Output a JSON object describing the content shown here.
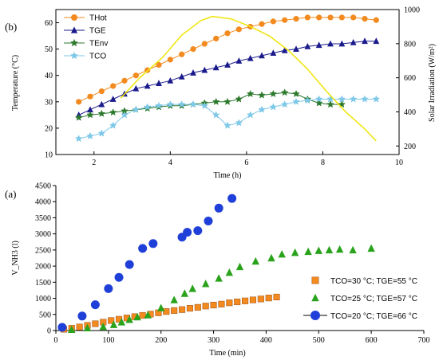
{
  "chart_data": [
    {
      "id": "top",
      "type": "line",
      "panel_label": "(b)",
      "xlabel": "Time (h)",
      "ylabel": "Temperature (°C)",
      "y2label": "Solar Irradiation (W/m²)",
      "xlim": [
        1,
        10
      ],
      "ylim": [
        10,
        65
      ],
      "y2lim": [
        150,
        1000
      ],
      "xticks": [
        2,
        4,
        6,
        8,
        10
      ],
      "yticks": [
        10,
        20,
        30,
        40,
        50,
        60
      ],
      "y2ticks": [
        200,
        400,
        600,
        800,
        1000
      ],
      "grid": false,
      "legend_position": "top-left",
      "series": [
        {
          "name": "THot",
          "color": "#f28a1f",
          "marker": "circle",
          "x": [
            1.6,
            1.9,
            2.2,
            2.5,
            2.8,
            3.1,
            3.4,
            3.7,
            4.0,
            4.3,
            4.6,
            4.9,
            5.2,
            5.5,
            5.8,
            6.1,
            6.4,
            6.7,
            7.0,
            7.3,
            7.6,
            7.9,
            8.2,
            8.5,
            8.8,
            9.1,
            9.4
          ],
          "y": [
            30,
            32,
            34,
            36,
            38,
            40,
            42,
            44,
            46,
            48,
            50,
            52,
            54,
            56,
            57.5,
            58.5,
            59.5,
            60.5,
            61,
            61.5,
            62,
            62,
            62,
            62,
            62,
            61.5,
            61
          ]
        },
        {
          "name": "TGE",
          "color": "#1a1a8c",
          "marker": "triangle",
          "x": [
            1.6,
            1.9,
            2.2,
            2.5,
            2.8,
            3.1,
            3.4,
            3.7,
            4.0,
            4.3,
            4.6,
            4.9,
            5.2,
            5.5,
            5.8,
            6.1,
            6.4,
            6.7,
            7.0,
            7.3,
            7.6,
            7.9,
            8.2,
            8.5,
            8.8,
            9.1,
            9.4
          ],
          "y": [
            25,
            27,
            29,
            31,
            33,
            35,
            36,
            37,
            38,
            39.5,
            41,
            42,
            43,
            44,
            45.5,
            46.5,
            47.5,
            48.5,
            49.5,
            50,
            51,
            51.5,
            52,
            52,
            52.5,
            53,
            53
          ]
        },
        {
          "name": "TEnv",
          "color": "#2d7a2d",
          "marker": "star",
          "x": [
            1.6,
            1.9,
            2.2,
            2.5,
            2.8,
            3.1,
            3.4,
            3.7,
            4.0,
            4.3,
            4.6,
            4.9,
            5.2,
            5.5,
            5.8,
            6.1,
            6.4,
            6.7,
            7.0,
            7.3,
            7.6,
            7.9,
            8.2,
            8.5
          ],
          "y": [
            24,
            25,
            25.5,
            26,
            26.5,
            27,
            27.5,
            28,
            28.5,
            28.5,
            29,
            29.5,
            30,
            30,
            31,
            33,
            32.5,
            33,
            33.5,
            33,
            31,
            29.5,
            29,
            29
          ]
        },
        {
          "name": "TCO",
          "color": "#7ec8e8",
          "marker": "star",
          "x": [
            1.6,
            1.9,
            2.2,
            2.5,
            2.8,
            3.1,
            3.4,
            3.7,
            4.0,
            4.3,
            4.6,
            4.9,
            5.2,
            5.5,
            5.8,
            6.1,
            6.4,
            6.7,
            7.0,
            7.3,
            7.6,
            7.9,
            8.2,
            8.5,
            8.8,
            9.1,
            9.4
          ],
          "y": [
            16,
            17,
            18,
            21,
            25,
            27,
            28,
            28.5,
            29,
            29,
            29,
            28.5,
            25,
            21,
            22,
            25,
            27,
            28,
            29,
            30,
            30.5,
            31,
            31,
            31,
            31,
            31,
            31
          ]
        },
        {
          "name": "Solar Irradiation",
          "color": "#f0e616",
          "marker": "none",
          "axis": "right",
          "x": [
            2.7,
            3.2,
            3.8,
            4.3,
            4.8,
            5.1,
            5.6,
            6.1,
            6.6,
            7.1,
            7.6,
            8.1,
            8.6,
            9.1,
            9.4
          ],
          "y": [
            480,
            600,
            720,
            850,
            935,
            960,
            945,
            900,
            845,
            760,
            650,
            520,
            400,
            300,
            230
          ]
        }
      ]
    },
    {
      "id": "bottom",
      "type": "scatter",
      "panel_label": "(a)",
      "xlabel": "Time (min)",
      "ylabel": "V_NH3 (l)",
      "xlim": [
        0,
        700
      ],
      "ylim": [
        0,
        4500
      ],
      "xticks": [
        0,
        100,
        200,
        300,
        400,
        500,
        600,
        700
      ],
      "yticks": [
        0,
        500,
        1000,
        1500,
        2000,
        2500,
        3000,
        3500,
        4000,
        4500
      ],
      "grid": false,
      "legend_position": "bottom-right",
      "series": [
        {
          "name": "TCO=30 °C; TGE=55 °C",
          "color": "#f28a1f",
          "marker": "square",
          "x": [
            15,
            30,
            45,
            60,
            75,
            90,
            105,
            120,
            135,
            150,
            165,
            180,
            195,
            210,
            225,
            240,
            255,
            270,
            285,
            300,
            315,
            330,
            345,
            360,
            375,
            390,
            405,
            420
          ],
          "y": [
            40,
            70,
            110,
            160,
            210,
            260,
            310,
            350,
            390,
            430,
            470,
            510,
            550,
            590,
            620,
            650,
            690,
            720,
            760,
            790,
            820,
            860,
            890,
            920,
            950,
            980,
            1010,
            1040
          ]
        },
        {
          "name": "TCO=25 °C; TGE=57 °C",
          "color": "#2aa31c",
          "marker": "triangle",
          "x": [
            30,
            60,
            90,
            110,
            125,
            140,
            155,
            175,
            200,
            225,
            245,
            260,
            285,
            310,
            330,
            350,
            380,
            410,
            430,
            455,
            480,
            500,
            520,
            540,
            565,
            600
          ],
          "y": [
            30,
            80,
            120,
            180,
            260,
            340,
            420,
            480,
            700,
            950,
            1150,
            1300,
            1450,
            1620,
            1800,
            1980,
            2150,
            2250,
            2370,
            2420,
            2450,
            2480,
            2500,
            2520,
            2500,
            2550
          ]
        },
        {
          "name": "TCO=20 °C; TGE=66 °C",
          "color": "#1f3fd9",
          "marker": "circle",
          "x": [
            12,
            50,
            75,
            100,
            120,
            140,
            165,
            185,
            240,
            250,
            270,
            290,
            310,
            335
          ],
          "y": [
            100,
            450,
            800,
            1300,
            1650,
            2050,
            2550,
            2700,
            2900,
            3050,
            3100,
            3400,
            3800,
            4100
          ]
        }
      ]
    }
  ]
}
